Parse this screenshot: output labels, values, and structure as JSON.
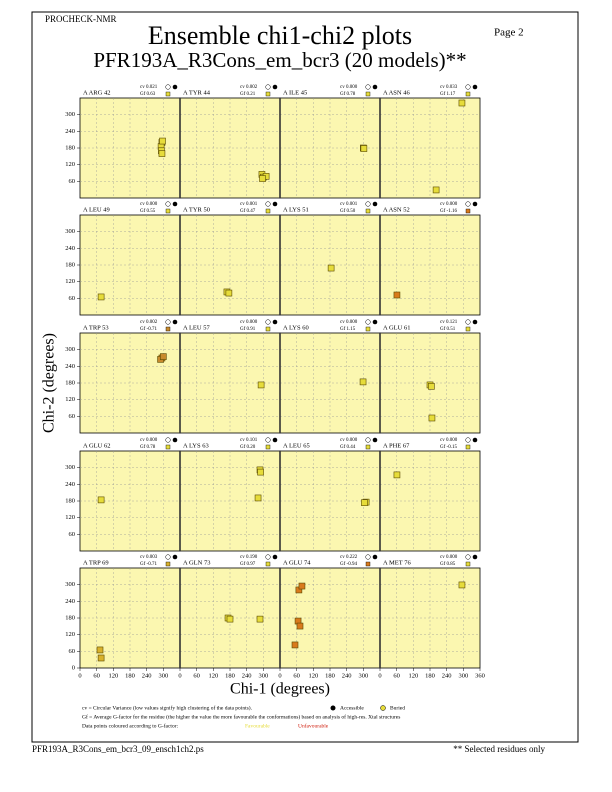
{
  "chart_data": {
    "type": "scatter",
    "header": "PROCHECK-NMR",
    "page": "Page  2",
    "title": "Ensemble chi1-chi2 plots",
    "subtitle": "PFR193A_R3Cons_em_bcr3 (20 models)**",
    "x_label": "Chi-1 (degrees)",
    "y_label": "Chi-2 (degrees)",
    "xlim": [
      0,
      360
    ],
    "ylim": [
      0,
      360
    ],
    "xticks": [
      0,
      60,
      120,
      180,
      240,
      300,
      360
    ],
    "yticks": [
      0,
      60,
      120,
      180,
      240,
      300
    ],
    "grid": true,
    "panel_color": "#fbf7b0",
    "panels": [
      {
        "residue": "A ARG 42",
        "cv": "cv 0.021",
        "gf": "Gf 0.63",
        "color": "#e6dc3a",
        "x": [
          295,
          292,
          293,
          295,
          297
        ],
        "y": [
          200,
          185,
          170,
          160,
          205
        ]
      },
      {
        "residue": "A TYR 44",
        "cv": "cv 0.002",
        "gf": "Gf 0.21",
        "color": "#e6dc3a",
        "x": [
          295,
          300,
          310,
          297
        ],
        "y": [
          85,
          75,
          78,
          70
        ]
      },
      {
        "residue": "A ILE 45",
        "cv": "cv 0.000",
        "gf": "Gf 0.78",
        "color": "#e6dc3a",
        "x": [
          300,
          302
        ],
        "y": [
          180,
          178
        ]
      },
      {
        "residue": "A ASN 46",
        "cv": "cv 0.033",
        "gf": "Gf 1.17",
        "color": "#e6dc3a",
        "x": [
          295,
          202
        ],
        "y": [
          342,
          29
        ]
      },
      {
        "residue": "A LEU 49",
        "cv": "cv 0.000",
        "gf": "Gf 0.55",
        "color": "#e6dc3a",
        "x": [
          76
        ],
        "y": [
          65
        ]
      },
      {
        "residue": "A TYR 50",
        "cv": "cv 0.001",
        "gf": "Gf 0.47",
        "color": "#e6dc3a",
        "x": [
          169,
          176
        ],
        "y": [
          83,
          79
        ]
      },
      {
        "residue": "A LYS 51",
        "cv": "cv 0.001",
        "gf": "Gf 0.50",
        "color": "#e6dc3a",
        "x": [
          184
        ],
        "y": [
          169
        ]
      },
      {
        "residue": "A ASN 52",
        "cv": "cv 0.000",
        "gf": "Gf -1.16",
        "color": "#d97a1c",
        "x": [
          61
        ],
        "y": [
          72
        ]
      },
      {
        "residue": "A TRP 53",
        "cv": "cv 0.002",
        "gf": "Gf -0.71",
        "color": "#c88a2c",
        "x": [
          295,
          290,
          300
        ],
        "y": [
          270,
          265,
          275
        ]
      },
      {
        "residue": "A LEU 57",
        "cv": "cv 0.000",
        "gf": "Gf 0.91",
        "color": "#e6dc3a",
        "x": [
          292
        ],
        "y": [
          173
        ]
      },
      {
        "residue": "A LYS 60",
        "cv": "cv 0.000",
        "gf": "Gf 1.15",
        "color": "#e6dc3a",
        "x": [
          299
        ],
        "y": [
          184
        ]
      },
      {
        "residue": "A GLU 61",
        "cv": "cv 0.121",
        "gf": "Gf 0.51",
        "color": "#e6dc3a",
        "x": [
          180,
          187,
          185
        ],
        "y": [
          173,
          54,
          168
        ]
      },
      {
        "residue": "A GLU 62",
        "cv": "cv 0.000",
        "gf": "Gf 0.78",
        "color": "#e6dc3a",
        "x": [
          76
        ],
        "y": [
          184
        ]
      },
      {
        "residue": "A LYS 63",
        "cv": "cv 0.101",
        "gf": "Gf 0.20",
        "color": "#e6dc3a",
        "x": [
          288,
          281,
          290
        ],
        "y": [
          292,
          191,
          284
        ]
      },
      {
        "residue": "A LEU 65",
        "cv": "cv 0.000",
        "gf": "Gf 0.44",
        "color": "#e6dc3a",
        "x": [
          310,
          304
        ],
        "y": [
          176,
          174
        ]
      },
      {
        "residue": "A PHE 67",
        "cv": "cv 0.000",
        "gf": "Gf -0.15",
        "color": "#e6dc3a",
        "x": [
          61
        ],
        "y": [
          274
        ]
      },
      {
        "residue": "A TRP 69",
        "cv": "cv 0.003",
        "gf": "Gf -0.71",
        "color": "#d9b22c",
        "x": [
          72,
          76
        ],
        "y": [
          65,
          36
        ]
      },
      {
        "residue": "A GLN 73",
        "cv": "cv 0.190",
        "gf": "Gf 0.97",
        "color": "#e6dc3a",
        "x": [
          173,
          288,
          180
        ],
        "y": [
          180,
          176,
          176
        ]
      },
      {
        "residue": "A GLU 74",
        "cv": "cv 0.222",
        "gf": "Gf -0.94",
        "color": "#d97a1c",
        "x": [
          65,
          72,
          68,
          79,
          54
        ],
        "y": [
          169,
          151,
          281,
          295,
          83
        ]
      },
      {
        "residue": "A MET 76",
        "cv": "cv 0.000",
        "gf": "Gf 0.85",
        "color": "#e6dc3a",
        "x": [
          295
        ],
        "y": [
          299
        ]
      }
    ],
    "notes": {
      "cv": "cv = Circular Variance (low values signify high clustering of the data points).",
      "accessible": "Accessible",
      "buried": "Buried",
      "gf": "Gf = Average G-factor for the residue (the higher the value the more favourable the conformations) based on analysis of high-res. Xtal structures",
      "colouring": "Data points coloured according to G-factor:",
      "favourable": "Favourable",
      "unfavourable": "Unfavourable",
      "favourable_color": "#e6dc3a",
      "unfavourable_color": "#d02010"
    },
    "footer_left": "PFR193A_R3Cons_em_bcr3_09_ensch1ch2.ps",
    "footer_right": "** Selected residues only"
  }
}
